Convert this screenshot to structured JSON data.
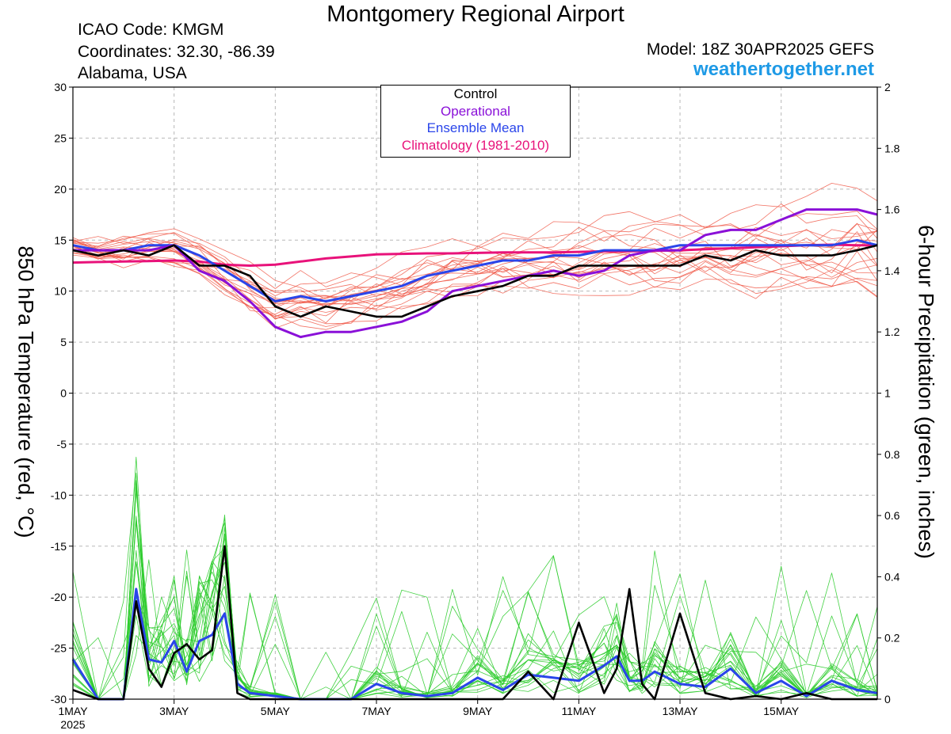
{
  "header": {
    "title": "Montgomery Regional Airport",
    "icao": "ICAO Code: KMGM",
    "coords": "Coordinates: 32.30, -86.39",
    "region": "Alabama, USA",
    "model": "Model: 18Z 30APR2025 GEFS",
    "site": "weathertogether.net"
  },
  "legend": {
    "items": [
      {
        "label": "Control",
        "color": "#000000"
      },
      {
        "label": "Operational",
        "color": "#8a10d8"
      },
      {
        "label": "Ensemble Mean",
        "color": "#2a45ea"
      },
      {
        "label": "Climatology (1981-2010)",
        "color": "#e8127a"
      }
    ]
  },
  "chart_data": {
    "type": "line",
    "title": "Montgomery Regional Airport",
    "ylabel": "850 hPa Temperature (red, °C)",
    "y2label": "6-hour Precipitation (green, inches)",
    "ylim": [
      -30,
      30
    ],
    "y2lim": [
      0,
      2
    ],
    "yticks": [
      30,
      25,
      20,
      15,
      10,
      5,
      0,
      -5,
      -10,
      -15,
      -20,
      -25,
      -30
    ],
    "y2ticks": [
      "2",
      "1.8",
      "1.6",
      "1.4",
      "1.2",
      "1",
      "0.8",
      "0.6",
      "0.4",
      "0.2",
      "0"
    ],
    "xlim_days": [
      0,
      15.9
    ],
    "xticks": [
      {
        "day": 0,
        "label": "1MAY",
        "sub": "2025"
      },
      {
        "day": 2,
        "label": "3MAY",
        "sub": ""
      },
      {
        "day": 4,
        "label": "5MAY",
        "sub": ""
      },
      {
        "day": 6,
        "label": "7MAY",
        "sub": ""
      },
      {
        "day": 8,
        "label": "9MAY",
        "sub": ""
      },
      {
        "day": 10,
        "label": "11MAY",
        "sub": ""
      },
      {
        "day": 12,
        "label": "13MAY",
        "sub": ""
      },
      {
        "day": 14,
        "label": "15MAY",
        "sub": ""
      }
    ],
    "x_unit": "days since 1MAY2025 00Z",
    "grid": true,
    "colors": {
      "members_temp": "#f05a4a",
      "members_precip": "#2ecc2e",
      "control": "#000000",
      "operational": "#8a10d8",
      "mean": "#2a45ea",
      "climatology": "#e8127a"
    },
    "temperature": {
      "x": [
        0,
        0.5,
        1,
        1.5,
        2,
        2.5,
        3,
        3.5,
        4,
        4.5,
        5,
        5.5,
        6,
        6.5,
        7,
        7.5,
        8,
        8.5,
        9,
        9.5,
        10,
        10.5,
        11,
        11.5,
        12,
        12.5,
        13,
        13.5,
        14,
        14.5,
        15,
        15.5,
        15.9
      ],
      "control": [
        14,
        13.5,
        14,
        13.5,
        14.5,
        12.5,
        12.5,
        11.5,
        8.5,
        7.5,
        8.5,
        8,
        7.5,
        7.5,
        8.5,
        9.5,
        10,
        10.5,
        11.5,
        11.5,
        12.5,
        12.5,
        12.5,
        12.5,
        12.5,
        13.5,
        13,
        14,
        13.5,
        13.5,
        13.5,
        14,
        14.5
      ],
      "operational": [
        14,
        14,
        14,
        14,
        14.5,
        12,
        11,
        9,
        6.5,
        5.5,
        6,
        6,
        6.5,
        7,
        8,
        10,
        10.5,
        11,
        11.5,
        12,
        11.5,
        12,
        13.5,
        14,
        14,
        15.5,
        16,
        16,
        17,
        18,
        18,
        18,
        17.5
      ],
      "mean": [
        14.5,
        14,
        14,
        14.5,
        14.5,
        13.5,
        12,
        10.5,
        9,
        9.5,
        9,
        9.5,
        10,
        10.5,
        11.5,
        12,
        12.5,
        13,
        13,
        13.5,
        13.5,
        14,
        14,
        14,
        14.5,
        14.5,
        14.5,
        14.5,
        14.5,
        14.5,
        14.5,
        15,
        14.5
      ],
      "climatology": [
        12.8,
        12.85,
        12.9,
        12.95,
        13.0,
        12.9,
        12.6,
        12.5,
        12.6,
        12.9,
        13.2,
        13.4,
        13.6,
        13.65,
        13.7,
        13.7,
        13.75,
        13.8,
        13.8,
        13.8,
        13.85,
        13.9,
        13.9,
        13.95,
        14.0,
        14.1,
        14.2,
        14.3,
        14.4,
        14.5,
        14.55,
        14.5,
        14.5
      ]
    },
    "precipitation": {
      "x": [
        0,
        0.5,
        1,
        1.25,
        1.5,
        1.75,
        2,
        2.25,
        2.5,
        2.75,
        3,
        3.25,
        3.5,
        4,
        4.5,
        5,
        5.5,
        6,
        6.5,
        7,
        7.5,
        8,
        8.5,
        9,
        9.5,
        10,
        10.5,
        10.75,
        11,
        11.25,
        11.5,
        12,
        12.5,
        13,
        13.5,
        14,
        14.5,
        15,
        15.5,
        15.9
      ],
      "control": [
        0.03,
        0,
        0,
        0.32,
        0.1,
        0.04,
        0.15,
        0.18,
        0.13,
        0.16,
        0.5,
        0.02,
        0,
        0,
        0,
        0,
        0,
        0,
        0,
        0,
        0,
        0,
        0,
        0.09,
        0,
        0.25,
        0.02,
        0.1,
        0.36,
        0.05,
        0,
        0.28,
        0.02,
        0,
        0.01,
        0,
        0.02,
        0,
        0,
        0
      ],
      "mean": [
        0.13,
        0,
        0,
        0.36,
        0.13,
        0.12,
        0.19,
        0.09,
        0.19,
        0.21,
        0.28,
        0.05,
        0.02,
        0.01,
        0,
        0,
        0,
        0.05,
        0.02,
        0.01,
        0.02,
        0.07,
        0.03,
        0.08,
        0.07,
        0.06,
        0.11,
        0.14,
        0.06,
        0.06,
        0.09,
        0.05,
        0.04,
        0.1,
        0.02,
        0.06,
        0.01,
        0.06,
        0.03,
        0.02
      ]
    }
  }
}
